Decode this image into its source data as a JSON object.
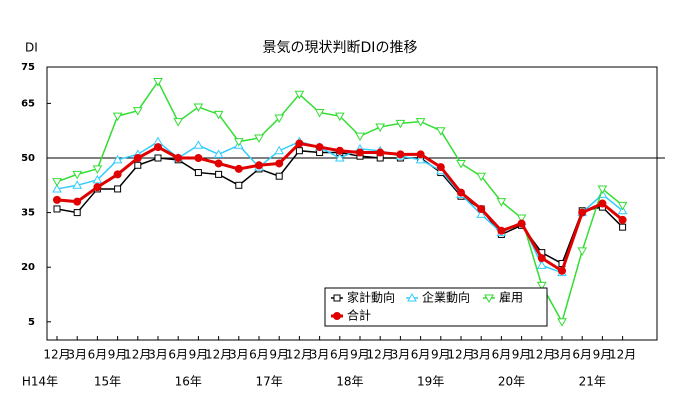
{
  "chart_data": {
    "type": "line",
    "title": "景気の現状判断DIの推移",
    "y_label": "DI",
    "categories": [
      "12月",
      "3月",
      "6月",
      "9月",
      "12月",
      "3月",
      "6月",
      "9月",
      "12月",
      "3月",
      "6月",
      "9月",
      "12月",
      "3月",
      "6月",
      "9月",
      "12月",
      "3月",
      "6月",
      "9月",
      "12月",
      "3月",
      "6月",
      "9月",
      "12月",
      "3月",
      "6月",
      "9月",
      "12月"
    ],
    "year_labels": [
      "H14年",
      "15年",
      "16年",
      "17年",
      "18年",
      "19年",
      "20年",
      "21年"
    ],
    "ylim": [
      0,
      75
    ],
    "yticks": [
      5,
      20,
      35,
      50,
      65,
      75
    ],
    "reference_line": 50,
    "legend": "bottom-right",
    "series": [
      {
        "name": "家計動向",
        "color": "#000000",
        "marker": "square",
        "values": [
          36,
          35,
          41.5,
          41.5,
          48,
          50,
          49.5,
          46,
          45.5,
          42.5,
          47,
          45,
          52,
          51.5,
          51.5,
          50.5,
          50,
          50,
          50,
          46,
          39.5,
          36,
          29,
          31.5,
          24,
          21,
          35.5,
          36.5,
          31
        ]
      },
      {
        "name": "企業動向",
        "color": "#33ccff",
        "marker": "triangle",
        "values": [
          41.5,
          42.5,
          44,
          49.5,
          51,
          54.5,
          50,
          53.5,
          51,
          53.5,
          47.5,
          52,
          54.5,
          53,
          50,
          52.5,
          52,
          50.5,
          49.5,
          46.5,
          40,
          34.5,
          29.5,
          32.5,
          20.5,
          18.5,
          35,
          40,
          35.5
        ]
      },
      {
        "name": "雇用",
        "color": "#33dd33",
        "marker": "triangle-down",
        "values": [
          43.5,
          45.5,
          47,
          61.5,
          63,
          71,
          60,
          64,
          62,
          54.5,
          55.5,
          61,
          67.5,
          62.5,
          61.5,
          56,
          58.5,
          59.5,
          60,
          57.5,
          48.5,
          45,
          38,
          33.5,
          15,
          5,
          24.5,
          41.5,
          37
        ]
      },
      {
        "name": "合計",
        "color": "#e00000",
        "marker": "circle",
        "values": [
          38.5,
          38,
          42,
          45.5,
          50,
          53,
          50,
          50,
          48.5,
          47,
          48,
          48.5,
          54,
          53,
          52,
          51.5,
          51.5,
          51,
          51,
          47.5,
          40.5,
          36,
          30,
          32,
          22.5,
          19,
          35,
          37.5,
          33
        ]
      }
    ]
  }
}
